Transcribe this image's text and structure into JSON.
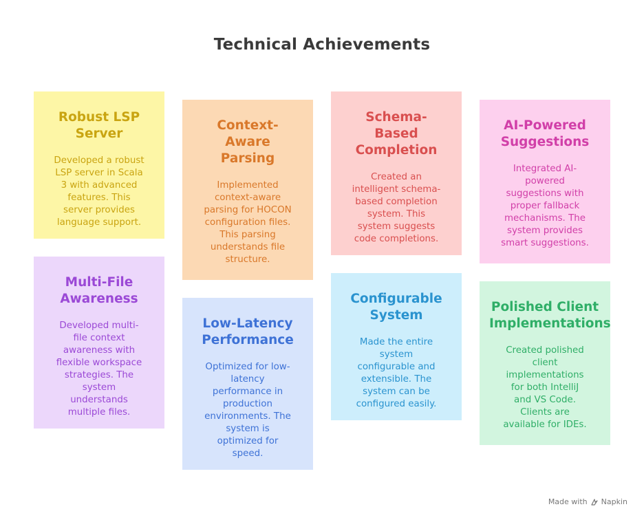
{
  "title": "Technical Achievements",
  "cards": [
    {
      "title": "Robust LSP\nServer",
      "body": "Developed a robust\nLSP server in Scala\n3 with advanced\nfeatures. This\nserver provides\nlanguage support.",
      "bg": "#fdf6a6",
      "color": "#c9a411"
    },
    {
      "title": "Context-\nAware\nParsing",
      "body": "Implemented\ncontext-aware\nparsing for HOCON\nconfiguration files.\nThis parsing\nunderstands file\nstructure.",
      "bg": "#fcd9b4",
      "color": "#d9782a"
    },
    {
      "title": "Schema-\nBased\nCompletion",
      "body": "Created an\nintelligent schema-\nbased completion\nsystem. This\nsystem suggests\ncode completions.",
      "bg": "#fdd0cf",
      "color": "#d94f4f"
    },
    {
      "title": "AI-Powered\nSuggestions",
      "body": "Integrated AI-\npowered\nsuggestions with\nproper fallback\nmechanisms. The\nsystem provides\nsmart suggestions.",
      "bg": "#fdd0ee",
      "color": "#d13fa8"
    },
    {
      "title": "Multi-File\nAwareness",
      "body": "Developed multi-\nfile context\nawareness with\nflexible workspace\nstrategies. The\nsystem\nunderstands\nmultiple files.",
      "bg": "#ecd7fb",
      "color": "#9b49d6"
    },
    {
      "title": "Low-Latency\nPerformance",
      "body": "Optimized for low-\nlatency\nperformance in\nproduction\nenvironments. The\nsystem is\noptimized for\nspeed.",
      "bg": "#d7e4fc",
      "color": "#3e72d6"
    },
    {
      "title": "Configurable\nSystem",
      "body": "Made the entire\nsystem\nconfigurable and\nextensible. The\nsystem can be\nconfigured easily.",
      "bg": "#cdeefc",
      "color": "#2a93cf"
    },
    {
      "title": "Polished Client\nImplementations",
      "body": "Created polished\nclient\nimplementations\nfor both IntelliJ\nand VS Code.\nClients are\navailable for IDEs.",
      "bg": "#d2f5df",
      "color": "#2fae67"
    }
  ],
  "footer": {
    "made_with": "Made with",
    "brand": "Napkin",
    "brand_icon": "napkin-logo-icon"
  }
}
